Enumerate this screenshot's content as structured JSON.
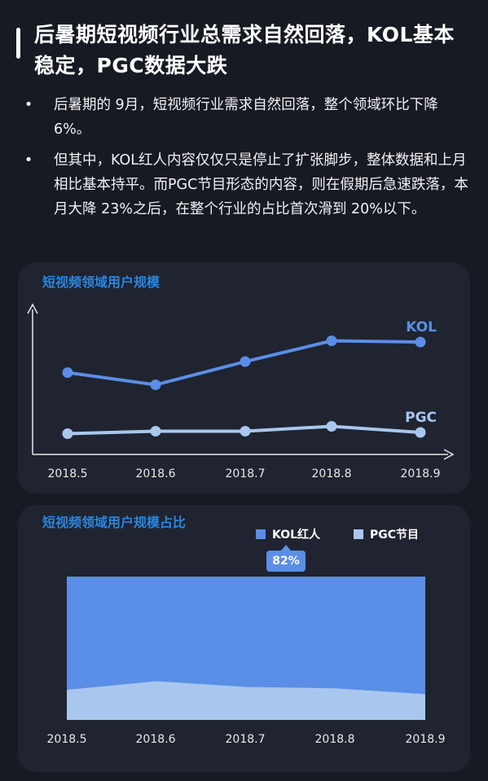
{
  "title": "后暑期短视频行业总需求自然回落，KOL基本稳定，PGC数据大跌",
  "bullets": [
    "后暑期的  9月，短视频行业需求自然回落，整个领域环比下降 6%。",
    "但其中，KOL红人内容仅仅只是停止了扩张脚步，整体数据和上月相比基本持平。而PGC节目形态的内容，则在假期后急速跌落，本月大降 23%之后，在整个行业的占比首次滑到 20%以下。"
  ],
  "bullet_symbol": "•",
  "colors": {
    "kol": "#5b8ee6",
    "pgc": "#a9c7ee",
    "title_blue": "#2a86e0"
  },
  "chart_data": [
    {
      "type": "line",
      "title": "短视频领域用户规模",
      "categories": [
        "2018.5",
        "2018.6",
        "2018.7",
        "2018.8",
        "2018.9"
      ],
      "series": [
        {
          "name": "KOL",
          "values": [
            6.7,
            5.7,
            7.6,
            9.3,
            9.2
          ]
        },
        {
          "name": "PGC",
          "values": [
            1.7,
            1.9,
            1.9,
            2.3,
            1.8
          ]
        }
      ],
      "ylim": [
        0,
        12
      ]
    },
    {
      "type": "area",
      "title": "短视频领域用户规模占比",
      "categories": [
        "2018.5",
        "2018.6",
        "2018.7",
        "2018.8",
        "2018.9"
      ],
      "series": [
        {
          "name": "KOL红人",
          "values": [
            79,
            73,
            77,
            78,
            82
          ]
        },
        {
          "name": "PGC节目",
          "values": [
            21,
            27,
            23,
            22,
            18
          ]
        }
      ],
      "tooltip": "82%",
      "ylim": [
        0,
        100
      ]
    }
  ]
}
